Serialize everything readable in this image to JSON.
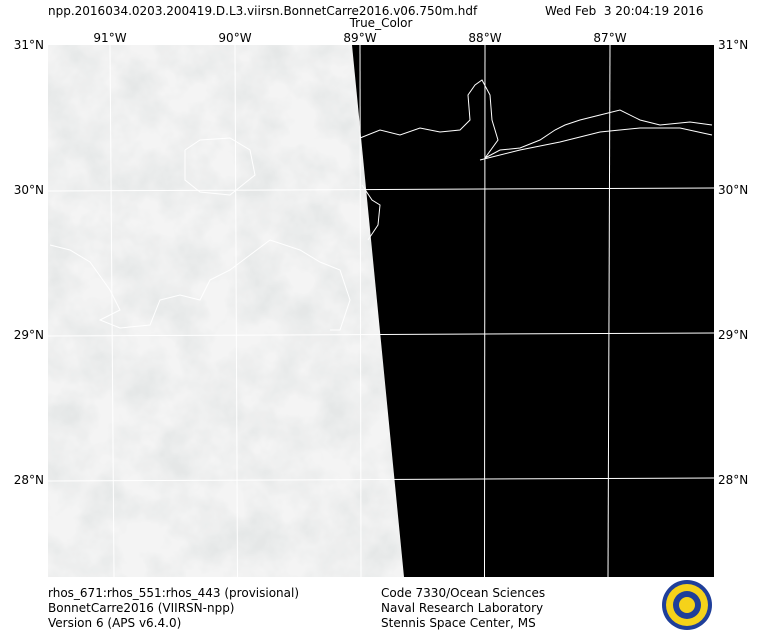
{
  "header": {
    "filename": "npp.2016034.0203.200419.D.L3.viirsn.BonnetCarre2016.v06.750m.hdf",
    "timestamp": "Wed Feb  3 20:04:19 2016",
    "product": "True_Color"
  },
  "map": {
    "lat_labels": [
      "31°N",
      "30°N",
      "29°N",
      "28°N"
    ],
    "lon_labels": [
      "91°W",
      "90°W",
      "89°W",
      "88°W",
      "87°W"
    ]
  },
  "footer": {
    "left": [
      "rhos_671:rhos_551:rhos_443 (provisional)",
      "BonnetCarre2016 (VIIRSN-npp)",
      "Version 6 (APS v6.4.0)"
    ],
    "right": [
      "Code 7330/Ocean Sciences",
      "Naval Research Laboratory",
      "Stennis Space Center, MS"
    ]
  }
}
